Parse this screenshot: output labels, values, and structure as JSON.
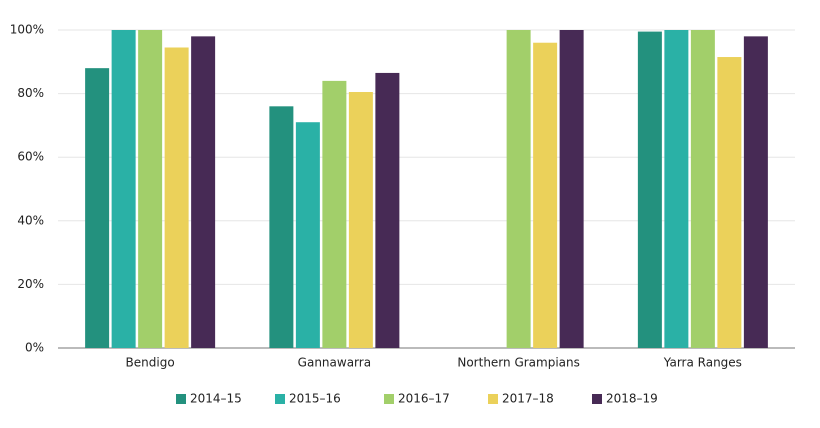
{
  "chart_data": {
    "type": "bar",
    "categories": [
      "Bendigo",
      "Gannawarra",
      "Northern Grampians",
      "Yarra Ranges"
    ],
    "series": [
      {
        "name": "2014–15",
        "color": "#23917e",
        "values": [
          88,
          76,
          null,
          99.5
        ]
      },
      {
        "name": "2015–16",
        "color": "#2ab1a6",
        "values": [
          100,
          71,
          null,
          100
        ]
      },
      {
        "name": "2016–17",
        "color": "#a2cf6a",
        "values": [
          100,
          84,
          100,
          100
        ]
      },
      {
        "name": "2017–18",
        "color": "#ebd15a",
        "values": [
          94.5,
          80.5,
          96,
          91.5
        ]
      },
      {
        "name": "2018–19",
        "color": "#472a55",
        "values": [
          98,
          86.5,
          100,
          98
        ]
      }
    ],
    "ylim": [
      0,
      100
    ],
    "yticks": [
      {
        "value": 0,
        "label": "0%"
      },
      {
        "value": 20,
        "label": "20%"
      },
      {
        "value": 40,
        "label": "40%"
      },
      {
        "value": 60,
        "label": "60%"
      },
      {
        "value": 80,
        "label": "80%"
      },
      {
        "value": 100,
        "label": "100%"
      }
    ],
    "grid": true,
    "legend": "bottom"
  }
}
